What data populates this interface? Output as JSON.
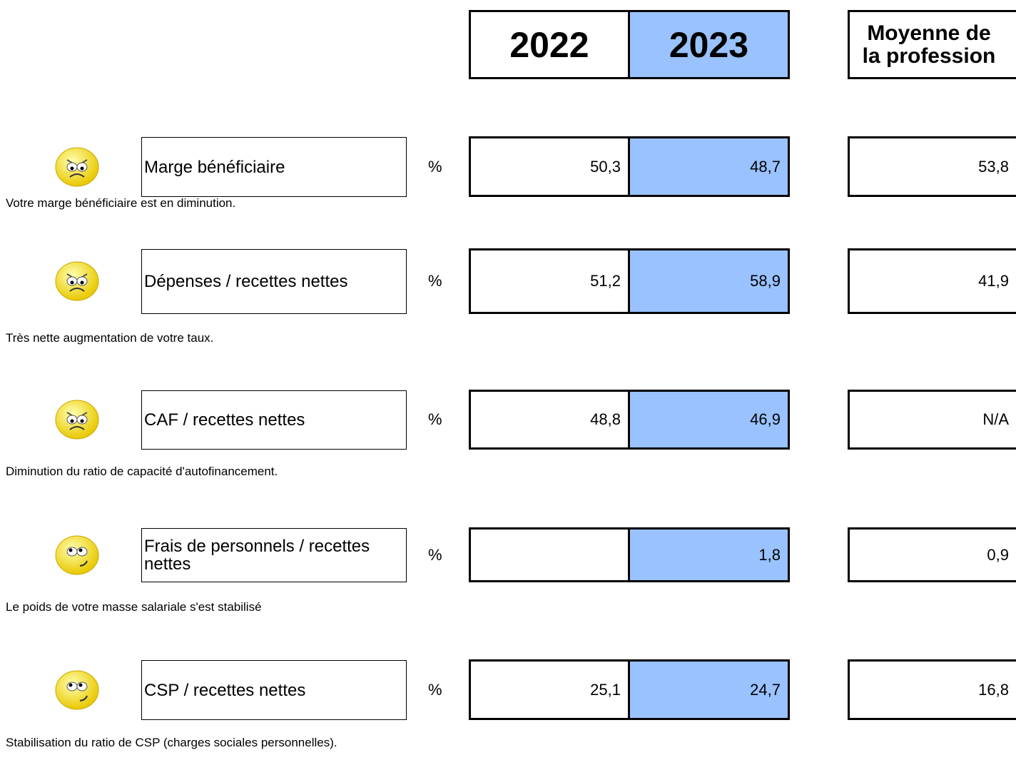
{
  "header": {
    "years": [
      "2022",
      "2023"
    ],
    "profession": "Moyenne de la profession"
  },
  "rows": [
    {
      "label": "Marge bénéficiaire",
      "unit": "%",
      "values": [
        "50,3",
        "48,7"
      ],
      "profession": "53,8",
      "comment": "Votre marge bénéficiaire est en diminution."
    },
    {
      "label": "Dépenses / recettes nettes",
      "unit": "%",
      "values": [
        "51,2",
        "58,9"
      ],
      "profession": "41,9",
      "comment": "Très nette augmentation de votre taux."
    },
    {
      "label": "CAF / recettes nettes",
      "unit": "%",
      "values": [
        "48,8",
        "46,9"
      ],
      "profession": "N/A",
      "comment": "Diminution du ratio de capacité d'autofinancement."
    },
    {
      "label": "Frais de personnels / recettes nettes",
      "unit": "%",
      "values": [
        null,
        "1,8"
      ],
      "profession": "0,9",
      "comment": "Le poids de votre masse salariale s'est stabilisé"
    },
    {
      "label": "CSP / recettes nettes",
      "unit": "%",
      "values": [
        "25,1",
        "24,7"
      ],
      "profession": "16,8",
      "comment": "Stabilisation du ratio de CSP (charges sociales personnelles)."
    }
  ]
}
